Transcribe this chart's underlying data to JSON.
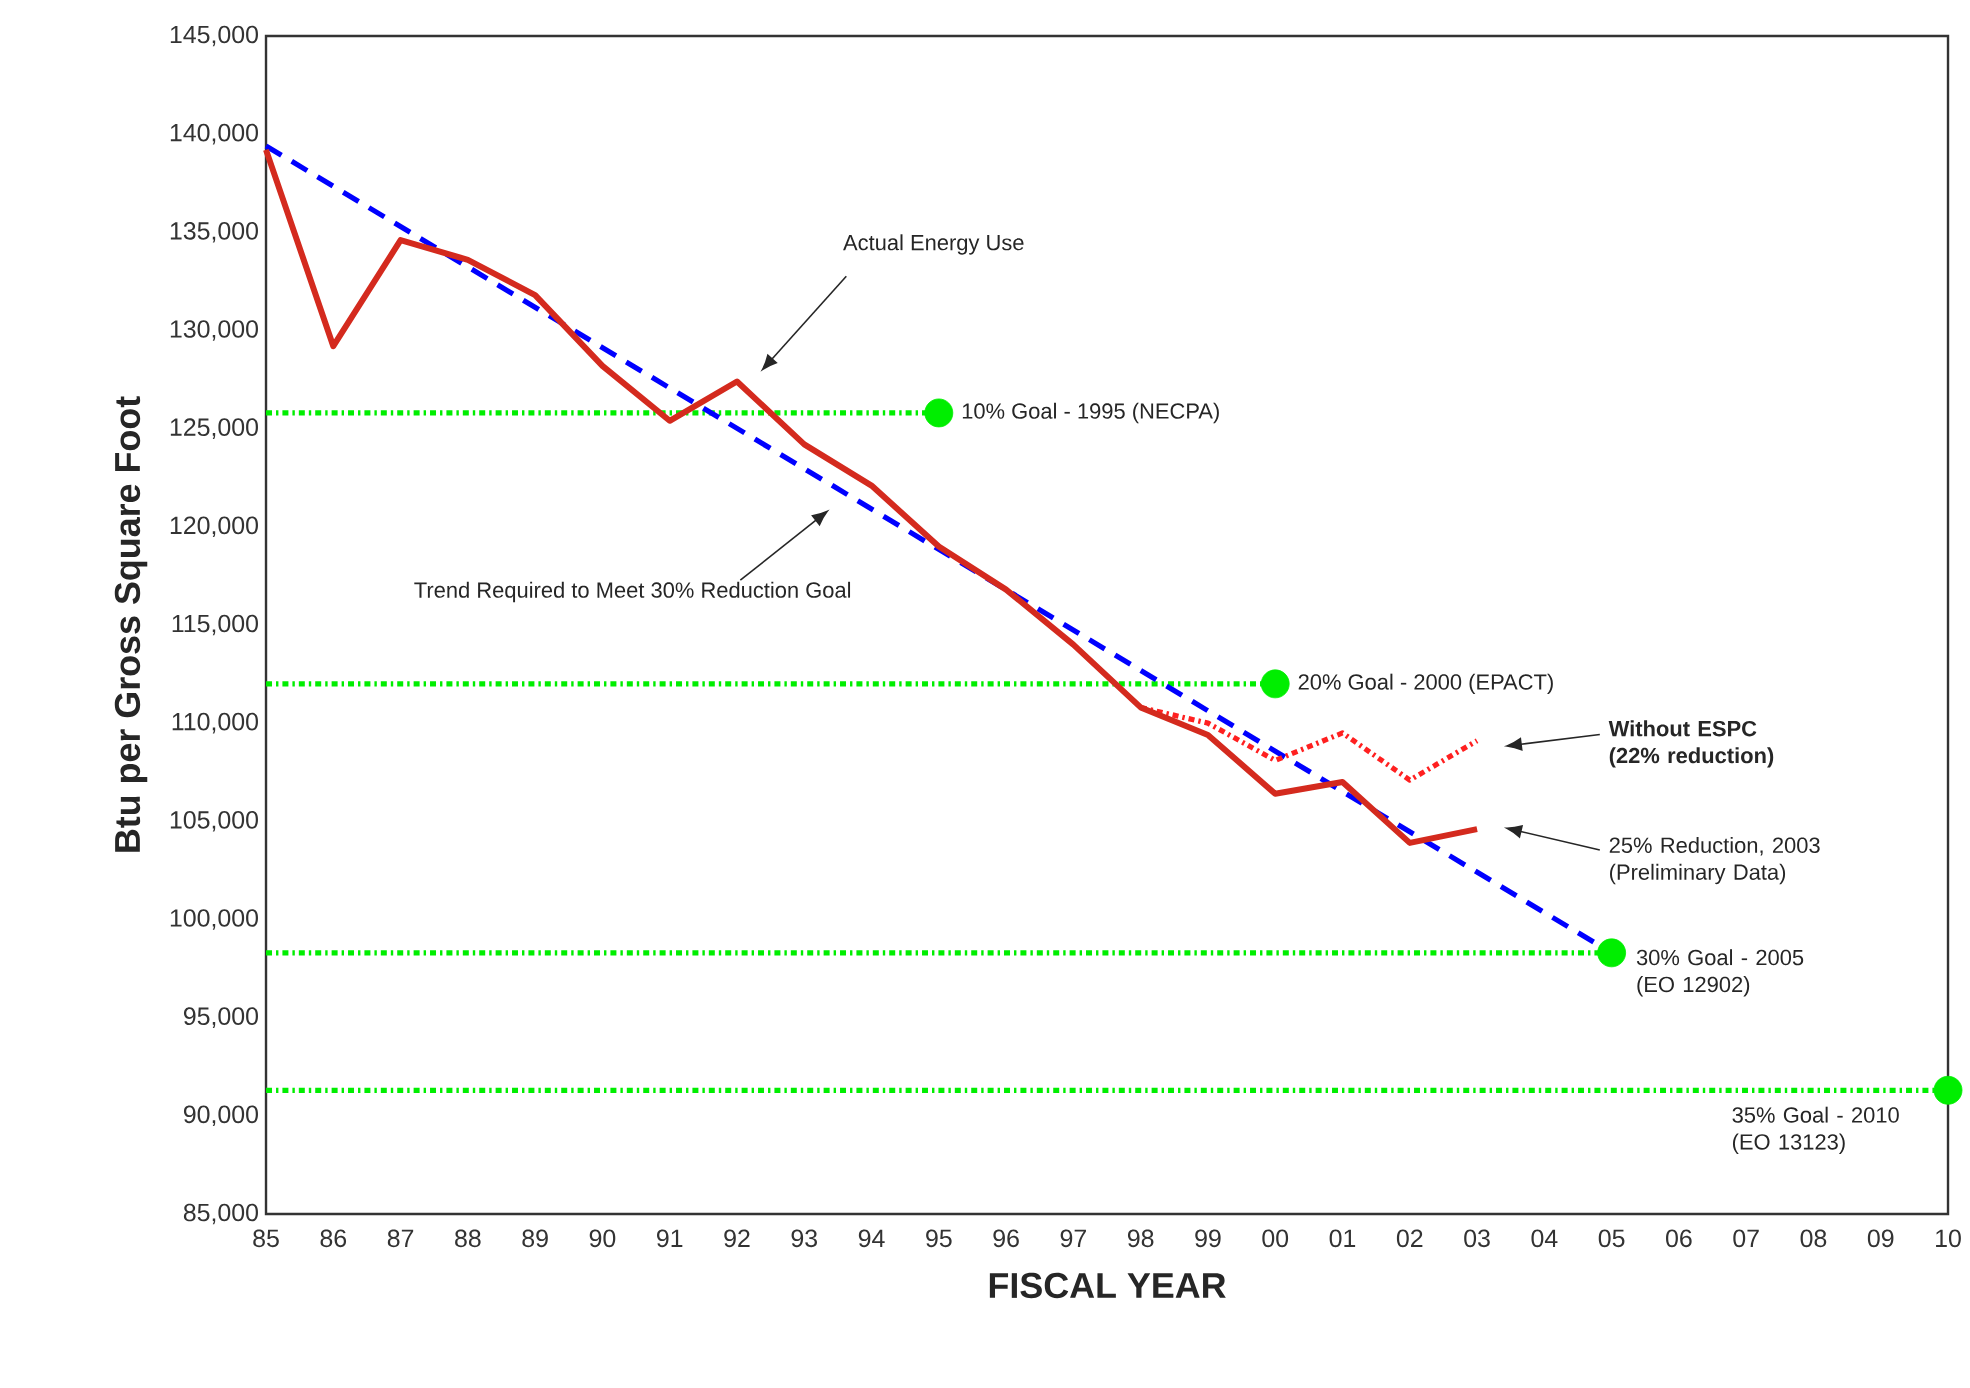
{
  "chart_data": {
    "type": "line",
    "xlabel": "FISCAL YEAR",
    "ylabel": "Btu per Gross Square Foot",
    "xlim": [
      1985,
      2010
    ],
    "ylim": [
      85000,
      145000
    ],
    "xticks": [
      {
        "value": 1985,
        "label": "85"
      },
      {
        "value": 1986,
        "label": "86"
      },
      {
        "value": 1987,
        "label": "87"
      },
      {
        "value": 1988,
        "label": "88"
      },
      {
        "value": 1989,
        "label": "89"
      },
      {
        "value": 1990,
        "label": "90"
      },
      {
        "value": 1991,
        "label": "91"
      },
      {
        "value": 1992,
        "label": "92"
      },
      {
        "value": 1993,
        "label": "93"
      },
      {
        "value": 1994,
        "label": "94"
      },
      {
        "value": 1995,
        "label": "95"
      },
      {
        "value": 1996,
        "label": "96"
      },
      {
        "value": 1997,
        "label": "97"
      },
      {
        "value": 1998,
        "label": "98"
      },
      {
        "value": 1999,
        "label": "99"
      },
      {
        "value": 2000,
        "label": "00"
      },
      {
        "value": 2001,
        "label": "01"
      },
      {
        "value": 2002,
        "label": "02"
      },
      {
        "value": 2003,
        "label": "03"
      },
      {
        "value": 2004,
        "label": "04"
      },
      {
        "value": 2005,
        "label": "05"
      },
      {
        "value": 2006,
        "label": "06"
      },
      {
        "value": 2007,
        "label": "07"
      },
      {
        "value": 2008,
        "label": "08"
      },
      {
        "value": 2009,
        "label": "09"
      },
      {
        "value": 2010,
        "label": "10"
      }
    ],
    "yticks": [
      {
        "value": 85000,
        "label": "85,000"
      },
      {
        "value": 90000,
        "label": "90,000"
      },
      {
        "value": 95000,
        "label": "95,000"
      },
      {
        "value": 100000,
        "label": "100,000"
      },
      {
        "value": 105000,
        "label": "105,000"
      },
      {
        "value": 110000,
        "label": "110,000"
      },
      {
        "value": 115000,
        "label": "115,000"
      },
      {
        "value": 120000,
        "label": "120,000"
      },
      {
        "value": 125000,
        "label": "125,000"
      },
      {
        "value": 130000,
        "label": "130,000"
      },
      {
        "value": 135000,
        "label": "135,000"
      },
      {
        "value": 140000,
        "label": "140,000"
      },
      {
        "value": 145000,
        "label": "145,000"
      }
    ],
    "series": [
      {
        "type": "line",
        "color": "#00ee00",
        "line_style": "dotted",
        "x": [
          1985,
          1995
        ],
        "values": [
          125800,
          125800
        ]
      },
      {
        "type": "line",
        "color": "#00ee00",
        "line_style": "dotted",
        "x": [
          1985,
          2000
        ],
        "values": [
          112000,
          112000
        ]
      },
      {
        "type": "line",
        "color": "#00ee00",
        "line_style": "dotted",
        "x": [
          1985,
          2005
        ],
        "values": [
          98300,
          98300
        ]
      },
      {
        "type": "line",
        "color": "#00ee00",
        "line_style": "dotted",
        "x": [
          1985,
          2010
        ],
        "values": [
          91300,
          91300
        ]
      },
      {
        "color": "#0000ff",
        "line_style": "dashed",
        "x": [
          1985,
          2005
        ],
        "values": [
          139400,
          98300
        ]
      },
      {
        "color": "#ff2020",
        "line_style": "dotted",
        "x": [
          1998,
          1999,
          2000,
          2001,
          2002,
          2003
        ],
        "values": [
          110800,
          110000,
          108100,
          109500,
          107100,
          109100
        ]
      },
      {
        "color": "#d42a1e",
        "line_style": "solid",
        "x": [
          1985,
          1986,
          1987,
          1988,
          1989,
          1990,
          1991,
          1992,
          1993,
          1994,
          1995,
          1996,
          1997,
          1998,
          1999,
          2000,
          2001,
          2002,
          2003
        ],
        "values": [
          139200,
          129200,
          134600,
          133600,
          131800,
          128200,
          125400,
          127400,
          124200,
          122100,
          119000,
          116800,
          114000,
          110800,
          109400,
          106400,
          107000,
          103900,
          104600
        ]
      },
      {
        "type": "scatter",
        "color": "#00ee00",
        "marker": "circle",
        "x": [
          1995,
          2000,
          2005,
          2010
        ],
        "values": [
          125800,
          112000,
          98300,
          91300
        ]
      }
    ],
    "annotations": [
      "Actual Energy Use",
      "Trend Required to Meet 30% Reduction Goal",
      {
        "text": "10% Goal - 1995 (NECPA)",
        "x": 1995,
        "y": 125800
      },
      {
        "text": "20% Goal - 2000 (EPACT)",
        "x": 2000,
        "y": 112000
      },
      "Without ESPC (22% reduction)",
      "25% Reduction, 2003 (Preliminary Data)",
      {
        "text": "30% Goal - 2005 (EO 12902)",
        "x": 2005,
        "y": 98300
      },
      {
        "text": "35% Goal - 2010 (EO 13123)",
        "x": 2010,
        "y": 91300
      }
    ]
  }
}
